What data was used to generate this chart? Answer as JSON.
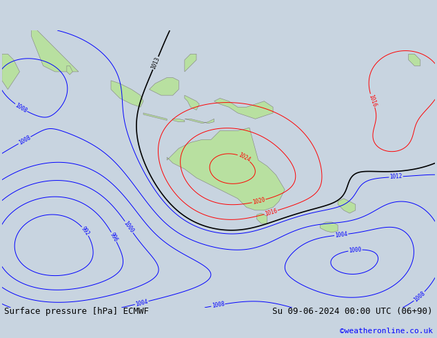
{
  "title_left": "Surface pressure [hPa] ECMWF",
  "title_right": "Su 09-06-2024 00:00 UTC (06+90)",
  "credit": "©weatheronline.co.uk",
  "ocean_color": "#c8d4e0",
  "land_color": "#b8e0a0",
  "font_size_title": 9,
  "font_size_credit": 8,
  "lon_min": 58,
  "lon_max": 205,
  "lat_min": -72,
  "lat_max": 22
}
